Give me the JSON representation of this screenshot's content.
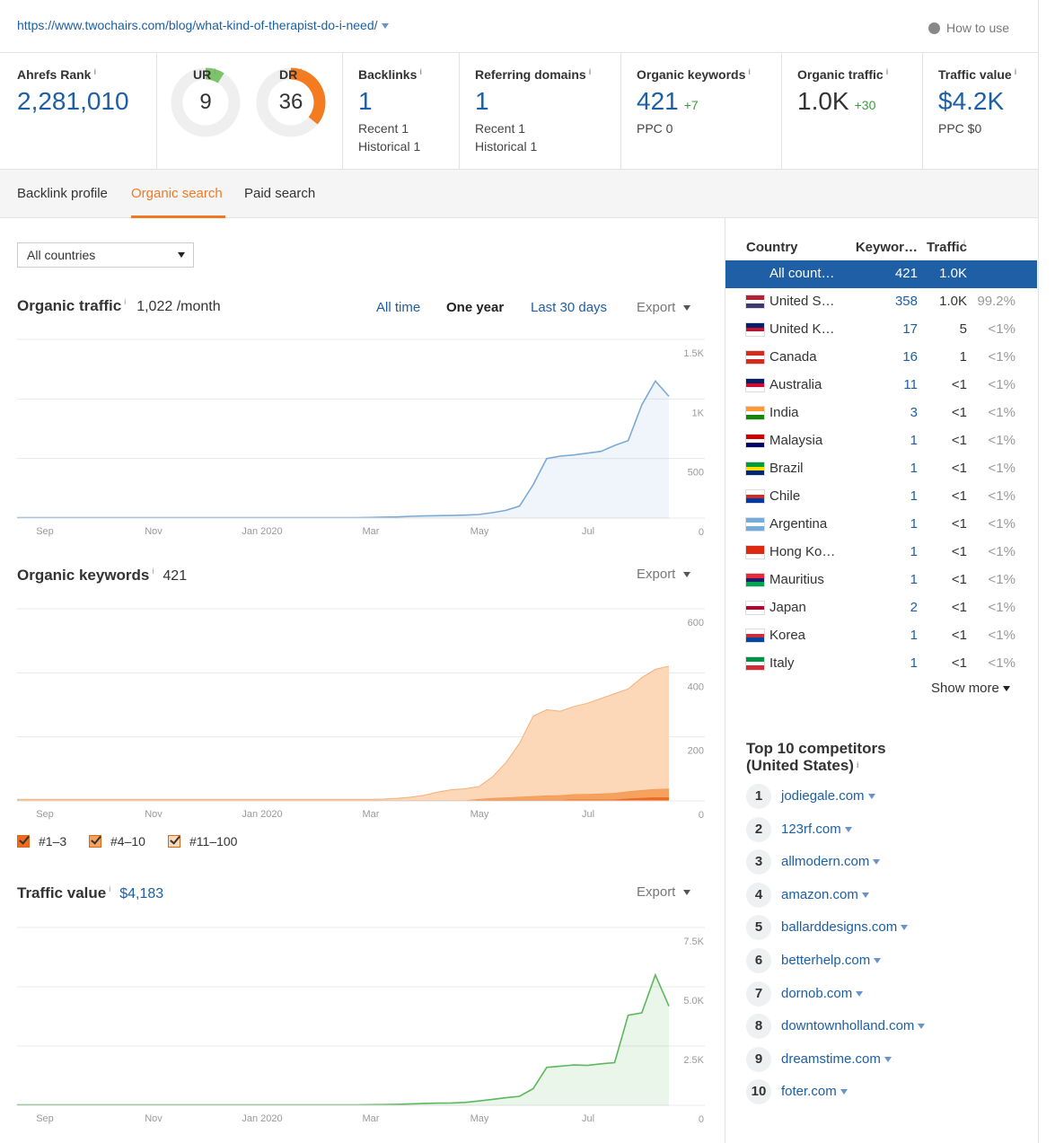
{
  "header": {
    "url": "https://www.twochairs.com/blog/what-kind-of-therapist-do-i-need/",
    "help": "How to use"
  },
  "info_icon": "i",
  "metrics": {
    "ahrefs_rank": {
      "label": "Ahrefs Rank",
      "value": "2,281,010"
    },
    "ur": {
      "label": "UR",
      "value": 9,
      "max": 100
    },
    "dr": {
      "label": "DR",
      "value": 36,
      "max": 100
    },
    "backlinks": {
      "label": "Backlinks",
      "value": "1",
      "recent": "Recent 1",
      "historical": "Historical 1"
    },
    "referring_domains": {
      "label": "Referring domains",
      "value": "1",
      "recent": "Recent 1",
      "historical": "Historical 1"
    },
    "organic_keywords": {
      "label": "Organic keywords",
      "value": "421",
      "change": "+7",
      "ppc": "PPC 0"
    },
    "organic_traffic": {
      "label": "Organic traffic",
      "value": "1.0K",
      "change": "+30"
    },
    "traffic_value": {
      "label": "Traffic value",
      "value": "$4.2K",
      "ppc": "PPC $0"
    }
  },
  "tabs": {
    "items": [
      "Backlink profile",
      "Organic search",
      "Paid search"
    ],
    "active": 1
  },
  "filter": "All countries",
  "chart_data": [
    {
      "type": "area",
      "title": "Organic traffic",
      "subtitle": "1,022 /month",
      "ranges": [
        "All time",
        "One year",
        "Last 30 days"
      ],
      "active_range": 1,
      "export": "Export",
      "x_labels": [
        "Sep",
        "Nov",
        "Jan 2020",
        "Mar",
        "May",
        "Jul"
      ],
      "ylim": [
        0,
        1500
      ],
      "yticks": [
        0,
        500,
        {
          "value": 1000,
          "label": "1K"
        },
        {
          "value": 1500,
          "label": "1.5K"
        }
      ],
      "grid": true,
      "series": [
        {
          "color": "#7aaad8",
          "values": [
            3,
            3,
            3,
            3,
            3,
            3,
            3,
            3,
            3,
            3,
            3,
            3,
            3,
            3,
            3,
            3,
            3,
            3,
            3,
            3,
            3,
            3,
            3,
            3,
            3,
            3,
            5,
            8,
            10,
            15,
            18,
            20,
            22,
            25,
            30,
            45,
            65,
            100,
            280,
            500,
            520,
            530,
            545,
            560,
            610,
            650,
            950,
            1150,
            1022
          ]
        }
      ]
    },
    {
      "type": "stacked_area",
      "title": "Organic keywords",
      "subtitle": "421",
      "export": "Export",
      "x_labels": [
        "Sep",
        "Nov",
        "Jan 2020",
        "Mar",
        "May",
        "Jul"
      ],
      "ylim": [
        0,
        600
      ],
      "yticks": [
        0,
        200,
        400,
        600
      ],
      "grid": true,
      "series": [
        {
          "name": "#1–3",
          "color": "#f0691c",
          "values": [
            1,
            1,
            1,
            1,
            1,
            1,
            1,
            1,
            1,
            1,
            1,
            1,
            1,
            1,
            1,
            1,
            1,
            1,
            1,
            1,
            1,
            1,
            1,
            1,
            1,
            1,
            1,
            1,
            1,
            1,
            1,
            1,
            1,
            1,
            3,
            3,
            3,
            3,
            3,
            3,
            3,
            5,
            5,
            5,
            5,
            8,
            10,
            12,
            12
          ]
        },
        {
          "name": "#4–10",
          "color": "#f7a15f",
          "values": [
            1,
            1,
            1,
            1,
            1,
            1,
            1,
            1,
            1,
            1,
            1,
            1,
            1,
            1,
            1,
            1,
            1,
            1,
            1,
            1,
            1,
            1,
            1,
            1,
            1,
            1,
            1,
            1,
            1,
            1,
            1,
            1,
            1,
            1,
            3,
            6,
            8,
            10,
            12,
            14,
            15,
            16,
            17,
            18,
            20,
            22,
            24,
            25,
            26
          ]
        },
        {
          "name": "#11–100",
          "color": "#fcd7b8",
          "values": [
            3,
            3,
            3,
            3,
            3,
            3,
            3,
            3,
            3,
            3,
            3,
            3,
            3,
            3,
            3,
            3,
            3,
            3,
            3,
            3,
            3,
            3,
            3,
            3,
            3,
            3,
            3,
            4,
            6,
            10,
            16,
            26,
            33,
            36,
            39,
            66,
            109,
            167,
            250,
            268,
            262,
            274,
            283,
            297,
            310,
            320,
            351,
            374,
            383
          ]
        }
      ]
    },
    {
      "type": "area",
      "title": "Traffic value",
      "subtitle": "$4,183",
      "export": "Export",
      "x_labels": [
        "Sep",
        "Nov",
        "Jan 2020",
        "Mar",
        "May",
        "Jul"
      ],
      "ylim": [
        0,
        7500
      ],
      "yticks": [
        0,
        {
          "value": 2500,
          "label": "2.5K"
        },
        {
          "value": 5000,
          "label": "5.0K"
        },
        {
          "value": 7500,
          "label": "7.5K"
        }
      ],
      "grid": true,
      "series": [
        {
          "color": "#5cb85c",
          "values": [
            20,
            20,
            20,
            20,
            20,
            20,
            20,
            20,
            20,
            20,
            20,
            20,
            20,
            20,
            20,
            20,
            20,
            20,
            20,
            20,
            20,
            20,
            20,
            20,
            20,
            20,
            25,
            30,
            40,
            60,
            80,
            90,
            100,
            120,
            180,
            250,
            320,
            380,
            700,
            1600,
            1650,
            1700,
            1680,
            1750,
            1800,
            3800,
            3900,
            5500,
            4183
          ]
        }
      ]
    }
  ],
  "countries": {
    "columns": [
      "Country",
      "Keywor…",
      "Traffic"
    ],
    "selected": 0,
    "rows": [
      {
        "name": "All count…",
        "keywords": "421",
        "traffic": "1.0K"
      },
      {
        "name": "United S…",
        "keywords": "358",
        "traffic": "1.0K",
        "share": "99.2%"
      },
      {
        "name": "United K…",
        "keywords": "17",
        "traffic": "5",
        "share": "<1%"
      },
      {
        "name": "Canada",
        "keywords": "16",
        "traffic": "1",
        "share": "<1%"
      },
      {
        "name": "Australia",
        "keywords": "11",
        "traffic": "<1",
        "share": "<1%"
      },
      {
        "name": "India",
        "keywords": "3",
        "traffic": "<1",
        "share": "<1%"
      },
      {
        "name": "Malaysia",
        "keywords": "1",
        "traffic": "<1",
        "share": "<1%"
      },
      {
        "name": "Brazil",
        "keywords": "1",
        "traffic": "<1",
        "share": "<1%"
      },
      {
        "name": "Chile",
        "keywords": "1",
        "traffic": "<1",
        "share": "<1%"
      },
      {
        "name": "Argentina",
        "keywords": "1",
        "traffic": "<1",
        "share": "<1%"
      },
      {
        "name": "Hong Ko…",
        "keywords": "1",
        "traffic": "<1",
        "share": "<1%"
      },
      {
        "name": "Mauritius",
        "keywords": "1",
        "traffic": "<1",
        "share": "<1%"
      },
      {
        "name": "Japan",
        "keywords": "2",
        "traffic": "<1",
        "share": "<1%"
      },
      {
        "name": "Korea",
        "keywords": "1",
        "traffic": "<1",
        "share": "<1%"
      },
      {
        "name": "Italy",
        "keywords": "1",
        "traffic": "<1",
        "share": "<1%"
      }
    ],
    "show_more": "Show more"
  },
  "competitors": {
    "title": "Top 10 competitors (United States)",
    "items": [
      {
        "rank": "1",
        "domain": "jodiegale.com"
      },
      {
        "rank": "2",
        "domain": "123rf.com"
      },
      {
        "rank": "3",
        "domain": "allmodern.com"
      },
      {
        "rank": "4",
        "domain": "amazon.com"
      },
      {
        "rank": "5",
        "domain": "ballarddesigns.com"
      },
      {
        "rank": "6",
        "domain": "betterhelp.com"
      },
      {
        "rank": "7",
        "domain": "dornob.com"
      },
      {
        "rank": "8",
        "domain": "downtownholland.com"
      },
      {
        "rank": "9",
        "domain": "dreamstime.com"
      },
      {
        "rank": "10",
        "domain": "foter.com"
      }
    ]
  }
}
